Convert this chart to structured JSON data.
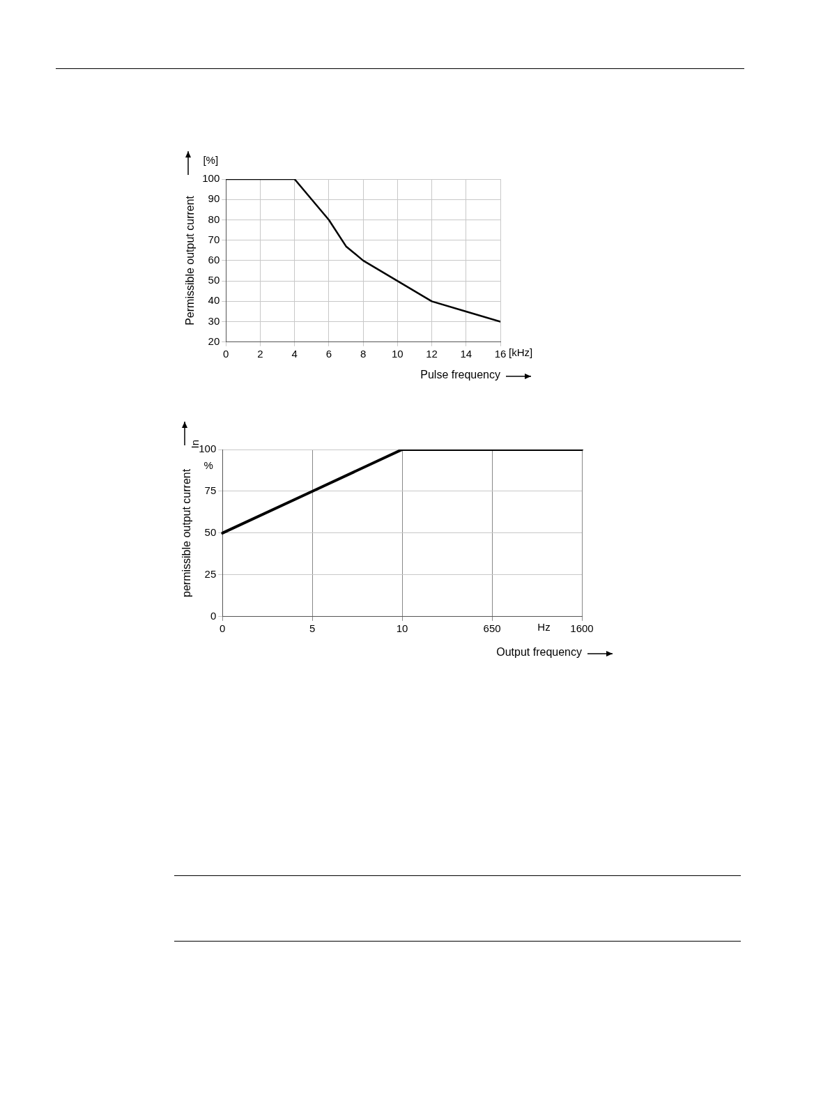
{
  "chart_data": [
    {
      "type": "line",
      "xlabel": "Pulse frequency",
      "ylabel": "Permissible output current",
      "annotations": [
        "[%]",
        "[kHz]"
      ],
      "x": [
        0,
        4,
        5,
        6,
        7,
        8,
        10,
        12,
        14,
        16
      ],
      "values": [
        100,
        100,
        90,
        80,
        67,
        60,
        50,
        40,
        35,
        30
      ],
      "color": "#000000",
      "xlim": [
        0,
        16
      ],
      "xticks": [
        0,
        2,
        4,
        6,
        8,
        10,
        12,
        14,
        16
      ],
      "ylim": [
        20,
        100
      ],
      "yticks": [
        20,
        30,
        40,
        50,
        60,
        70,
        80,
        90,
        100
      ],
      "grid": true,
      "legend": false,
      "marker": "none",
      "line_style": "solid"
    },
    {
      "type": "line",
      "xlabel": "Output frequency",
      "ylabel": "permissible output current",
      "annotations": [
        "%",
        "In",
        "Hz"
      ],
      "categories": [
        "0",
        "5",
        "10",
        "650",
        "1600"
      ],
      "values": [
        50,
        75,
        100,
        100,
        100
      ],
      "color": "#000000",
      "ylim": [
        0,
        100
      ],
      "yticks": [
        0,
        25,
        50,
        75,
        100
      ],
      "grid": true,
      "legend": false,
      "marker": "none",
      "line_style": "solid"
    }
  ]
}
